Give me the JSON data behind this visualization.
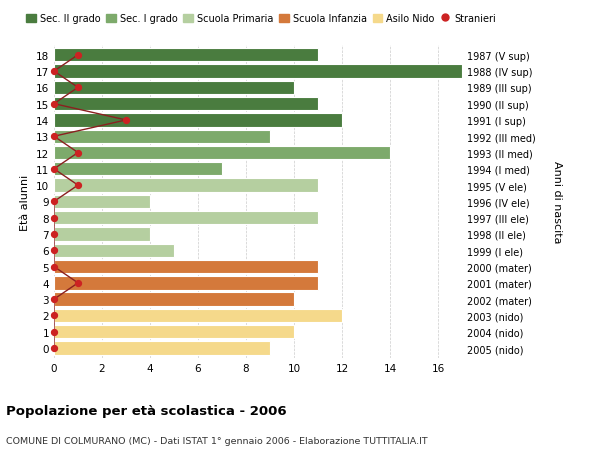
{
  "ages": [
    0,
    1,
    2,
    3,
    4,
    5,
    6,
    7,
    8,
    9,
    10,
    11,
    12,
    13,
    14,
    15,
    16,
    17,
    18
  ],
  "bar_values": [
    9,
    10,
    12,
    10,
    11,
    11,
    5,
    4,
    11,
    4,
    11,
    7,
    14,
    9,
    12,
    11,
    10,
    17,
    11
  ],
  "stranieri_values": [
    0,
    0,
    0,
    0,
    1,
    0,
    0,
    0,
    0,
    0,
    1,
    0,
    1,
    0,
    3,
    0,
    1,
    0,
    1
  ],
  "right_labels": [
    "2005 (nido)",
    "2004 (nido)",
    "2003 (nido)",
    "2002 (mater)",
    "2001 (mater)",
    "2000 (mater)",
    "1999 (I ele)",
    "1998 (II ele)",
    "1997 (III ele)",
    "1996 (IV ele)",
    "1995 (V ele)",
    "1994 (I med)",
    "1993 (II med)",
    "1992 (III med)",
    "1991 (I sup)",
    "1990 (II sup)",
    "1989 (III sup)",
    "1988 (IV sup)",
    "1987 (V sup)"
  ],
  "bar_colors": [
    "#f5d98b",
    "#f5d98b",
    "#f5d98b",
    "#d4793b",
    "#d4793b",
    "#d4793b",
    "#b5cfa0",
    "#b5cfa0",
    "#b5cfa0",
    "#b5cfa0",
    "#b5cfa0",
    "#7daa6b",
    "#7daa6b",
    "#7daa6b",
    "#4a7c3f",
    "#4a7c3f",
    "#4a7c3f",
    "#4a7c3f",
    "#4a7c3f"
  ],
  "legend_labels": [
    "Sec. II grado",
    "Sec. I grado",
    "Scuola Primaria",
    "Scuola Infanzia",
    "Asilo Nido",
    "Stranieri"
  ],
  "legend_colors": [
    "#4a7c3f",
    "#7daa6b",
    "#b5cfa0",
    "#d4793b",
    "#f5d98b",
    "#cc2222"
  ],
  "ylabel_left": "Età alunni",
  "ylabel_right": "Anni di nascita",
  "title": "Popolazione per età scolastica - 2006",
  "subtitle": "COMUNE DI COLMURANO (MC) - Dati ISTAT 1° gennaio 2006 - Elaborazione TUTTITALIA.IT",
  "xlim": [
    0,
    17
  ],
  "xticks": [
    0,
    2,
    4,
    6,
    8,
    10,
    12,
    14,
    16
  ],
  "stranieri_color": "#cc2222",
  "stranieri_line_color": "#8b2020",
  "bg_color": "#ffffff",
  "bar_edge_color": "#ffffff"
}
